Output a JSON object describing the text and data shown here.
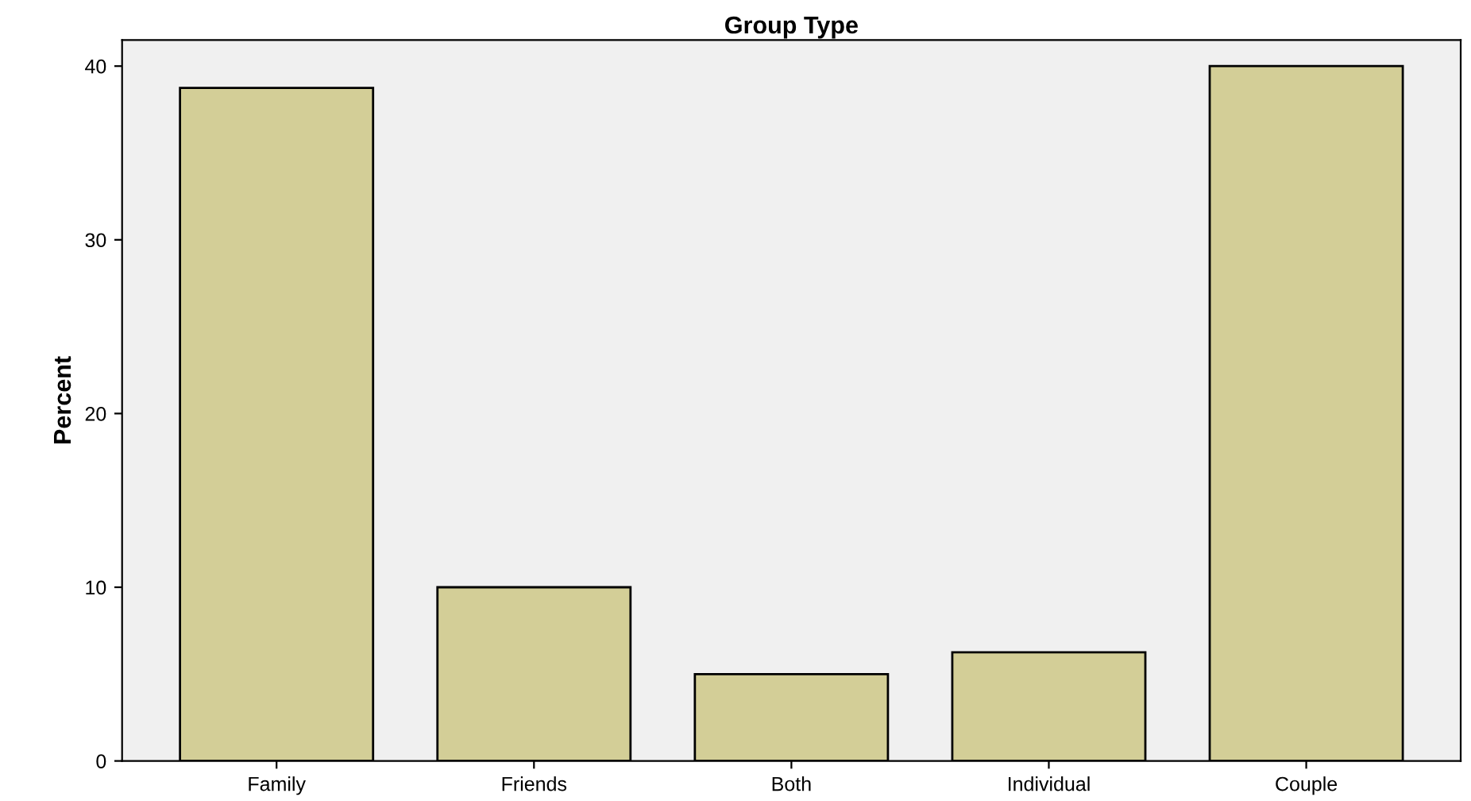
{
  "chart_data": {
    "type": "bar",
    "title": "Group Type",
    "ylabel": "Percent",
    "categories": [
      "Family",
      "Friends",
      "Both",
      "Individual",
      "Couple"
    ],
    "values": [
      38.75,
      10,
      5,
      6.25,
      40
    ],
    "color": "#d3ce97",
    "ylim": [
      0,
      41.5
    ],
    "yticks": [
      0,
      10,
      20,
      30,
      40
    ],
    "grid": false
  }
}
